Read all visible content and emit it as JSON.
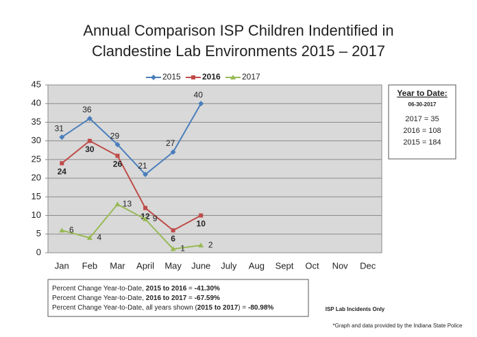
{
  "chart_data": {
    "type": "line",
    "title": [
      "Annual Comparison ISP Children Indentified in",
      "Clandestine Lab Environments 2015 – 2017"
    ],
    "categories": [
      "Jan",
      "Feb",
      "Mar",
      "April",
      "May",
      "June",
      "July",
      "Aug",
      "Sept",
      "Oct",
      "Nov",
      "Dec"
    ],
    "series": [
      {
        "name": "2015",
        "color": "#4a7ebb",
        "marker": "diamond",
        "bold": false,
        "values": [
          31,
          36,
          29,
          21,
          27,
          40,
          null,
          null,
          null,
          null,
          null,
          null
        ]
      },
      {
        "name": "2016",
        "color": "#be4b48",
        "marker": "square",
        "bold": true,
        "values": [
          24,
          30,
          26,
          12,
          6,
          10,
          null,
          null,
          null,
          null,
          null,
          null
        ]
      },
      {
        "name": "2017",
        "color": "#98b954",
        "marker": "triangle",
        "bold": false,
        "values": [
          6,
          4,
          13,
          9,
          1,
          2,
          null,
          null,
          null,
          null,
          null,
          null
        ]
      }
    ],
    "ylim": [
      0,
      45
    ],
    "yticks": [
      0,
      5,
      10,
      15,
      20,
      25,
      30,
      35,
      40,
      45
    ],
    "grid": true,
    "legend": "top",
    "side_box": {
      "title": "Year to Date:",
      "date": "06-30-2017",
      "lines": [
        "2017 = 35",
        "2016 = 108",
        "2015 = 184"
      ]
    },
    "bottom_box": [
      [
        {
          "text": "Percent Change Year-to-Date, ",
          "bold": false
        },
        {
          "text": "2015 to 2016",
          "bold": true
        },
        {
          "text": " =  ",
          "bold": false
        },
        {
          "text": "-41.30%",
          "bold": true
        }
      ],
      [
        {
          "text": "Percent Change Year-to-Date, ",
          "bold": false
        },
        {
          "text": "2016 to 2017",
          "bold": true
        },
        {
          "text": " =  ",
          "bold": false
        },
        {
          "text": "-67.59%",
          "bold": true
        }
      ],
      [
        {
          "text": "Percent Change Year-to-Date, all years shown (",
          "bold": false
        },
        {
          "text": "2015 to 2017",
          "bold": true
        },
        {
          "text": ") = ",
          "bold": false
        },
        {
          "text": "-80.98%",
          "bold": true
        }
      ]
    ],
    "note": "ISP Lab Incidents Only",
    "source": "*Graph and data provided by the Indiana State Police"
  }
}
